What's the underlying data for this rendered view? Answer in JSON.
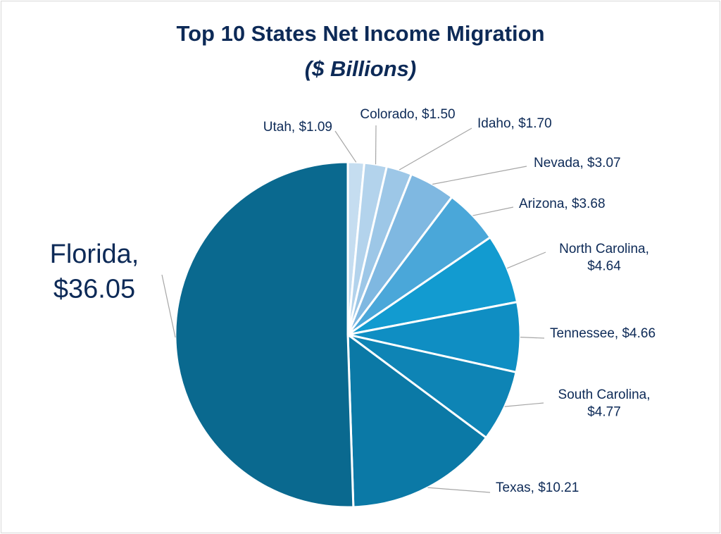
{
  "chart_data": {
    "type": "pie",
    "title": "Top 10 States Net Income Migration",
    "subtitle": "($ Billions)",
    "slices": [
      {
        "label": "Utah",
        "value_text": "$1.09",
        "value": 1.09,
        "color": "#c5ddf0"
      },
      {
        "label": "Colorado",
        "value_text": "$1.50",
        "value": 1.5,
        "color": "#b3d3ec"
      },
      {
        "label": "Idaho",
        "value_text": "$1.70",
        "value": 1.7,
        "color": "#9dc7e7"
      },
      {
        "label": "Nevada",
        "value_text": "$3.07",
        "value": 3.07,
        "color": "#7fb8e1"
      },
      {
        "label": "Arizona",
        "value_text": "$3.68",
        "value": 3.68,
        "color": "#4aa7d9"
      },
      {
        "label": "North Carolina",
        "value_text": "$4.64",
        "value": 4.64,
        "color": "#129bd0"
      },
      {
        "label": "Tennessee",
        "value_text": "$4.66",
        "value": 4.66,
        "color": "#0f8ec3"
      },
      {
        "label": "South Carolina",
        "value_text": "$4.77",
        "value": 4.77,
        "color": "#0e84b5"
      },
      {
        "label": "Texas",
        "value_text": "$10.21",
        "value": 10.21,
        "color": "#0b79a6"
      },
      {
        "label": "Florida",
        "value_text": "$36.05",
        "value": 36.05,
        "color": "#0a698f"
      }
    ]
  }
}
